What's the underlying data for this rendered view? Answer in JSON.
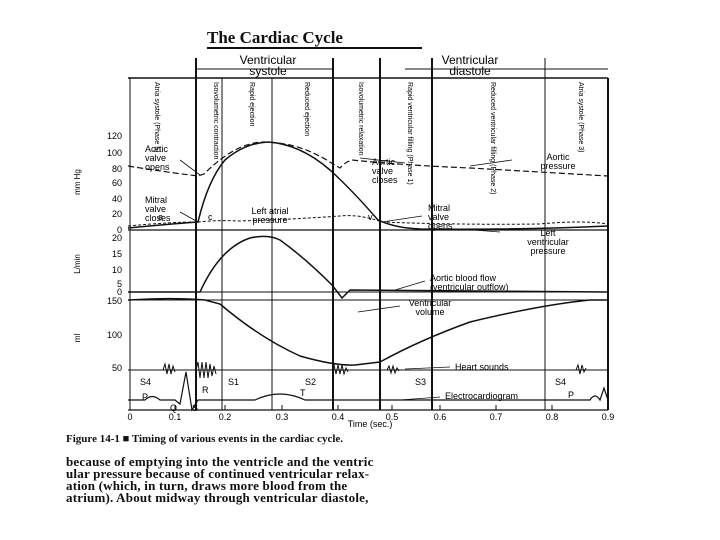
{
  "title": "The Cardiac Cycle",
  "headers": {
    "systole": "Ventricular systole",
    "diastole": "Ventricular diastole"
  },
  "phases": [
    "Atria systole (Phase 5)",
    "Isovolumetric contraction",
    "Rapid ejection",
    "Reduced ejection",
    "Isovolumetric relaxation",
    "Rapid ventricular filling (Phase 1)",
    "Reduced ventricular filling (Phase 2)",
    "Atria systole (Phase 3)"
  ],
  "axes": {
    "pressure_label": "mm Hg",
    "pressure_ticks": [
      "120",
      "100",
      "80",
      "60",
      "40",
      "20",
      "0"
    ],
    "flow_label": "L/min",
    "flow_ticks": [
      "20",
      "15",
      "10",
      "5",
      "0"
    ],
    "volume_label": "ml",
    "volume_ticks": [
      "150",
      "100",
      "50"
    ],
    "time_ticks": [
      "0",
      "0.1",
      "0.2",
      "0.3",
      "0.4",
      "0.5",
      "0.6",
      "0.7",
      "0.8",
      "0.9"
    ],
    "time_label": "Time (sec.)"
  },
  "annotations": {
    "aortic_valve_opens": [
      "Aortic",
      "valve",
      "opens"
    ],
    "aortic_valve_closes": [
      "Aortic",
      "valve",
      "closes"
    ],
    "aortic_pressure": [
      "Aortic",
      "pressure"
    ],
    "mitral_valve_closes": [
      "Mitral",
      "valve",
      "closes"
    ],
    "mitral_valve_opens": [
      "Mitral",
      "valve",
      "opens"
    ],
    "left_atrial_pressure": [
      "Left atrial",
      "pressure"
    ],
    "left_ventricular_pressure": [
      "Left",
      "ventricular",
      "pressure"
    ],
    "aortic_blood_flow": [
      "Aortic blood flow",
      "(ventricular outflow)"
    ],
    "ventricular_volume": [
      "Ventricular",
      "volume"
    ],
    "heart_sounds": "Heart sounds",
    "electrocardiogram": "Electrocardiogram",
    "s4": "S4",
    "s1": "S1",
    "s2": "S2",
    "s3": "S3",
    "s4b": "S4",
    "a_wave": "a",
    "c_wave": "c",
    "v_wave": "v",
    "p": "P",
    "q": "Q",
    "r": "R",
    "s": "S",
    "t": "T",
    "p2": "P"
  },
  "caption": {
    "figure": "Figure 14-1",
    "text": "Timing of various events in the cardiac cycle."
  },
  "body_text": [
    "because of emptying into the ventricle and the ventric",
    "ular pressure because of continued ventricular relax-",
    "ation (which, in turn, draws more blood from the",
    "atrium). About midway through ventricular diastole,"
  ]
}
